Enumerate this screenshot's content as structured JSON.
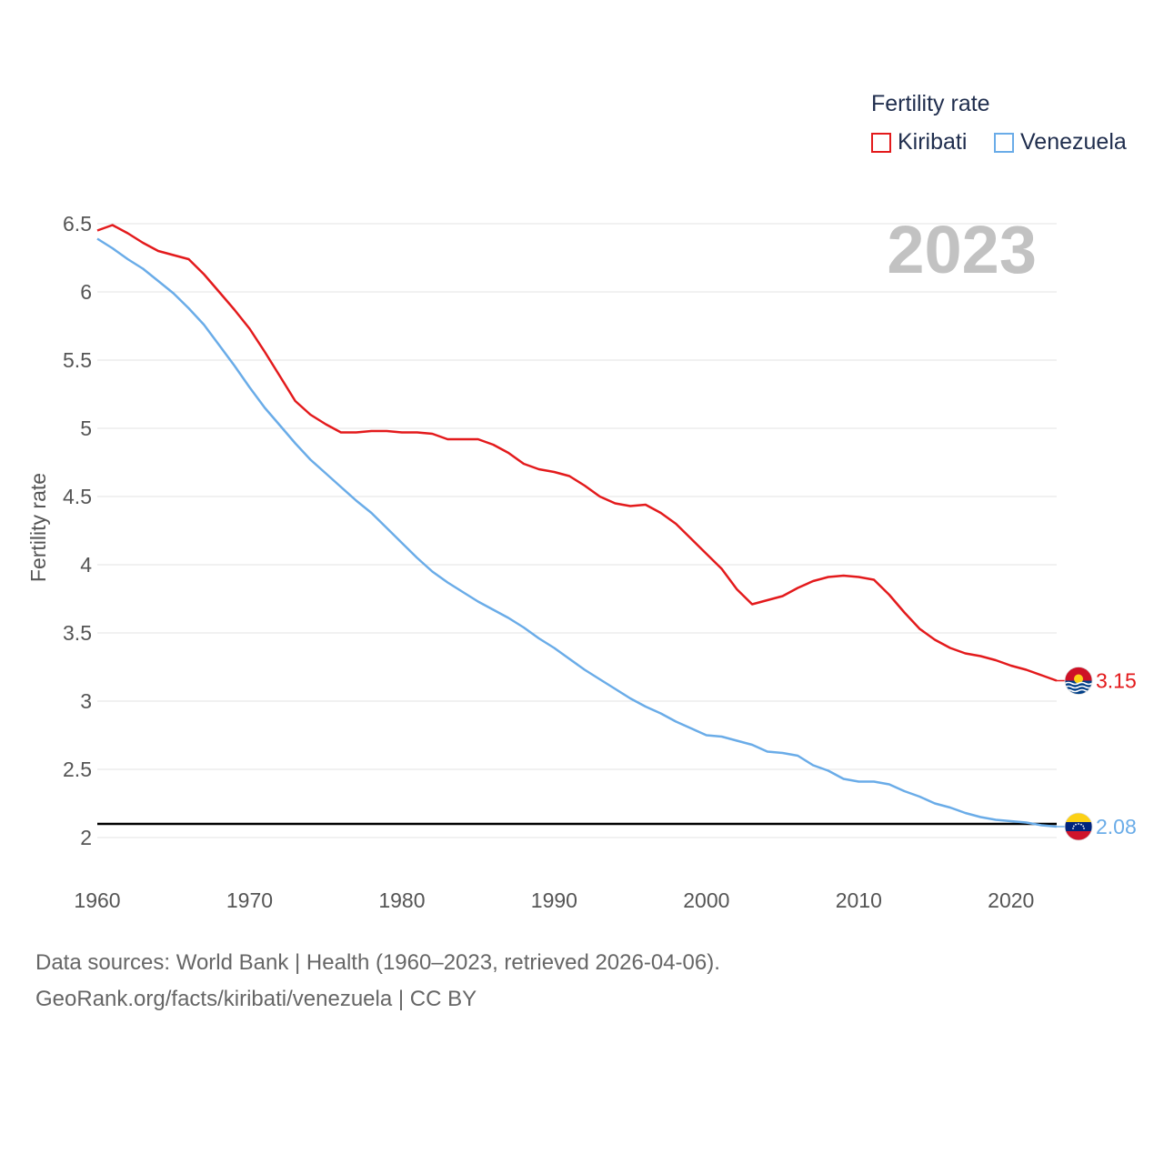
{
  "chart_data": {
    "type": "line",
    "ylabel": "Fertility rate",
    "xlabel": "",
    "xlim": [
      1960,
      2023
    ],
    "ylim": [
      1.8,
      6.65
    ],
    "xticks": [
      1960,
      1970,
      1980,
      1990,
      2000,
      2010,
      2020
    ],
    "yticks": [
      2,
      2.5,
      3,
      3.5,
      4,
      4.5,
      5,
      5.5,
      6,
      6.5
    ],
    "ytick_labels": [
      "2",
      "2.5",
      "3",
      "3.5",
      "4",
      "4.5",
      "5",
      "5.5",
      "6",
      "6.5"
    ],
    "year_label": "2023",
    "reference_line": 2.1,
    "grid": true,
    "legend": {
      "title": "Fertility rate",
      "placement": "top-right"
    },
    "x": [
      1960,
      1961,
      1962,
      1963,
      1964,
      1965,
      1966,
      1967,
      1968,
      1969,
      1970,
      1971,
      1972,
      1973,
      1974,
      1975,
      1976,
      1977,
      1978,
      1979,
      1980,
      1981,
      1982,
      1983,
      1984,
      1985,
      1986,
      1987,
      1988,
      1989,
      1990,
      1991,
      1992,
      1993,
      1994,
      1995,
      1996,
      1997,
      1998,
      1999,
      2000,
      2001,
      2002,
      2003,
      2004,
      2005,
      2006,
      2007,
      2008,
      2009,
      2010,
      2011,
      2012,
      2013,
      2014,
      2015,
      2016,
      2017,
      2018,
      2019,
      2020,
      2021,
      2022,
      2023
    ],
    "series": [
      {
        "name": "Kiribati",
        "color": "#e31a1c",
        "end_label": "3.15",
        "values": [
          6.45,
          6.49,
          6.43,
          6.36,
          6.3,
          6.27,
          6.24,
          6.13,
          6.0,
          5.87,
          5.73,
          5.56,
          5.38,
          5.2,
          5.1,
          5.03,
          4.97,
          4.97,
          4.98,
          4.98,
          4.97,
          4.97,
          4.96,
          4.92,
          4.92,
          4.92,
          4.88,
          4.82,
          4.74,
          4.7,
          4.68,
          4.65,
          4.58,
          4.5,
          4.45,
          4.43,
          4.44,
          4.38,
          4.3,
          4.19,
          4.08,
          3.97,
          3.82,
          3.71,
          3.74,
          3.77,
          3.83,
          3.88,
          3.91,
          3.92,
          3.91,
          3.89,
          3.78,
          3.65,
          3.53,
          3.45,
          3.39,
          3.35,
          3.33,
          3.3,
          3.26,
          3.23,
          3.19,
          3.15
        ]
      },
      {
        "name": "Venezuela",
        "color": "#6aace8",
        "end_label": "2.08",
        "values": [
          6.39,
          6.32,
          6.24,
          6.17,
          6.08,
          5.99,
          5.88,
          5.76,
          5.61,
          5.46,
          5.3,
          5.15,
          5.02,
          4.89,
          4.77,
          4.67,
          4.57,
          4.47,
          4.38,
          4.27,
          4.16,
          4.05,
          3.95,
          3.87,
          3.8,
          3.73,
          3.67,
          3.61,
          3.54,
          3.46,
          3.39,
          3.31,
          3.23,
          3.16,
          3.09,
          3.02,
          2.96,
          2.91,
          2.85,
          2.8,
          2.75,
          2.74,
          2.71,
          2.68,
          2.63,
          2.62,
          2.6,
          2.53,
          2.49,
          2.43,
          2.41,
          2.41,
          2.39,
          2.34,
          2.3,
          2.25,
          2.22,
          2.18,
          2.15,
          2.13,
          2.12,
          2.11,
          2.09,
          2.08
        ]
      }
    ]
  },
  "source": {
    "line1": "Data sources: World Bank | Health (1960–2023, retrieved 2026-04-06).",
    "line2": "GeoRank.org/facts/kiribati/venezuela | CC BY"
  },
  "flags": {
    "kiribati": "kiribati-flag-icon",
    "venezuela": "venezuela-flag-icon"
  }
}
